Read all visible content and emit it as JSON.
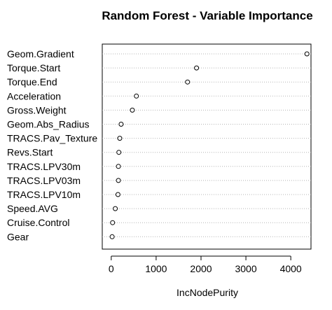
{
  "chart_data": {
    "type": "scatter",
    "title": "Random Forest - Variable Importance",
    "xlabel": "IncNodePurity",
    "ylabel": "",
    "xlim": [
      -200,
      4450
    ],
    "xticks": [
      0,
      1000,
      2000,
      3000,
      4000
    ],
    "grid": "dotted horizontal lines",
    "categories": [
      "Geom.Gradient",
      "Torque.Start",
      "Torque.End",
      "Acceleration",
      "Gross.Weight",
      "Geom.Abs_Radius",
      "TRACS.Pav_Texture",
      "Revs.Start",
      "TRACS.LPV30m",
      "TRACS.LPV03m",
      "TRACS.LPV10m",
      "Speed.AVG",
      "Cruise.Control",
      "Gear"
    ],
    "values": [
      4360,
      1900,
      1700,
      560,
      470,
      220,
      190,
      170,
      160,
      160,
      150,
      90,
      30,
      20
    ]
  }
}
